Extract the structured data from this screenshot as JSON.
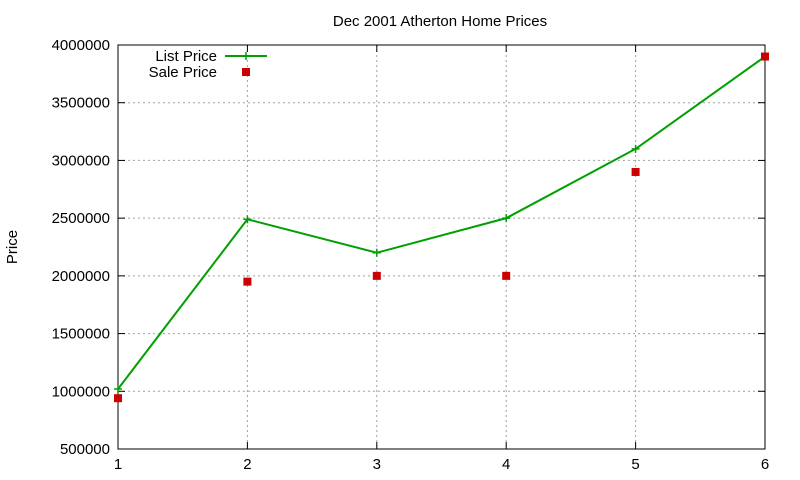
{
  "chart_data": {
    "type": "line",
    "title": "Dec 2001 Atherton Home Prices",
    "xlabel": "",
    "ylabel": "Price",
    "x": [
      1,
      2,
      3,
      4,
      5,
      6
    ],
    "xlim": [
      1,
      6
    ],
    "ylim": [
      500000,
      4000000
    ],
    "xticks": [
      "1",
      "2",
      "3",
      "4",
      "5",
      "6"
    ],
    "yticks": [
      "500000",
      "1000000",
      "1500000",
      "2000000",
      "2500000",
      "3000000",
      "3500000",
      "4000000"
    ],
    "grid": true,
    "legend_position": "top-left",
    "series": [
      {
        "name": "List Price",
        "style": "line+markers",
        "marker": "plus",
        "color": "#00a000",
        "values": [
          1020000,
          2490000,
          2200000,
          2500000,
          3100000,
          3900000
        ]
      },
      {
        "name": "Sale Price",
        "style": "markers",
        "marker": "square",
        "color": "#cc0000",
        "values": [
          940000,
          1950000,
          2000000,
          2000000,
          2900000,
          3900000
        ]
      }
    ]
  }
}
